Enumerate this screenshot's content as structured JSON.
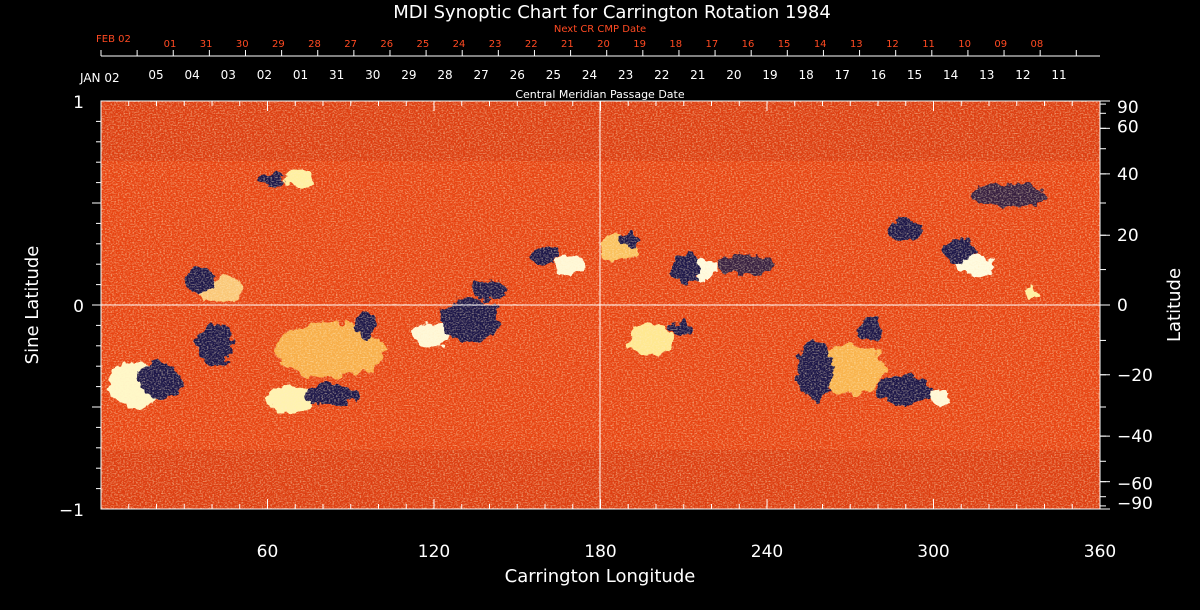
{
  "chart_data": {
    "type": "heatmap",
    "title": "MDI Synoptic Chart for Carrington Rotation 1984",
    "xlabel": "Carrington Longitude",
    "ylabel_left": "Sine Latitude",
    "ylabel_right": "Latitude",
    "xlim": [
      0,
      360
    ],
    "ylim": [
      -1,
      1
    ],
    "x_ticks": [
      "60",
      "120",
      "180",
      "240",
      "300",
      "360"
    ],
    "x_tick_values": [
      60,
      120,
      180,
      240,
      300,
      360
    ],
    "y_left_ticks": [
      {
        "label": "1",
        "value": 1
      },
      {
        "label": "0",
        "value": 0
      },
      {
        "label": "−1",
        "value": -1
      }
    ],
    "y_right_ticks": [
      {
        "label": "90",
        "deg": 90
      },
      {
        "label": "60",
        "deg": 60
      },
      {
        "label": "40",
        "deg": 40
      },
      {
        "label": "20",
        "deg": 20
      },
      {
        "label": "0",
        "deg": 0
      },
      {
        "label": "−20",
        "deg": -20
      },
      {
        "label": "−40",
        "deg": -40
      },
      {
        "label": "−60",
        "deg": -60
      },
      {
        "label": "−90",
        "deg": -90
      }
    ],
    "cmp_axis_label": "Central Meridian Passage Date",
    "cmp_start_label": "JAN 02",
    "cmp_dates": [
      "05",
      "04",
      "03",
      "02",
      "01",
      "31",
      "30",
      "29",
      "28",
      "27",
      "26",
      "25",
      "24",
      "23",
      "22",
      "21",
      "20",
      "19",
      "18",
      "17",
      "16",
      "15",
      "14",
      "13",
      "12",
      "11"
    ],
    "next_cr_label": "Next CR CMP Date",
    "next_cr_start_label": "FEB 02",
    "next_cr_dates": [
      "01",
      "31",
      "30",
      "29",
      "28",
      "27",
      "26",
      "25",
      "24",
      "23",
      "22",
      "21",
      "20",
      "19",
      "18",
      "17",
      "16",
      "15",
      "14",
      "13",
      "12",
      "11",
      "10",
      "09",
      "08"
    ],
    "colors": {
      "background_field": "#ee4412",
      "positive_polarity": "#ffffd0",
      "negative_polarity": "#14104a",
      "next_cr_text": "#ff4a22",
      "axis": "#ffffff"
    }
  }
}
